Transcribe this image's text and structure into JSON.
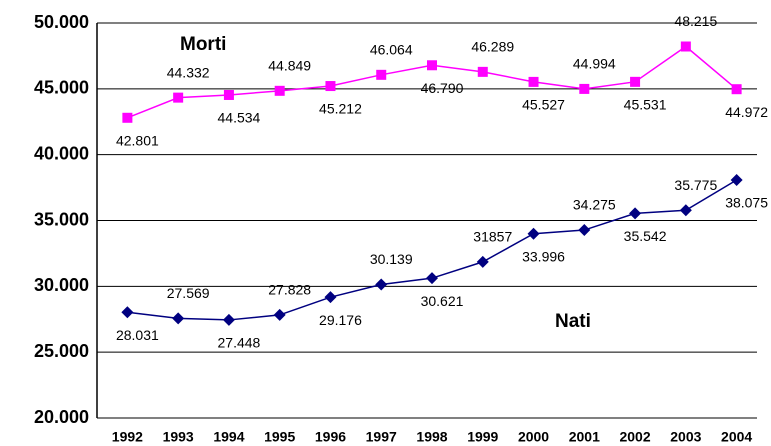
{
  "chart_data": {
    "type": "line",
    "categories": [
      "1992",
      "1993",
      "1994",
      "1995",
      "1996",
      "1997",
      "1998",
      "1999",
      "2000",
      "2001",
      "2002",
      "2003",
      "2004"
    ],
    "series": [
      {
        "name": "Morti",
        "color": "#ff00ff",
        "marker": "square",
        "values": [
          42801,
          44332,
          44534,
          44849,
          45212,
          46064,
          46790,
          46289,
          45527,
          44994,
          45531,
          48215,
          44972
        ],
        "value_labels": [
          "42.801",
          "44.332",
          "44.534",
          "44.849",
          "45.212",
          "46.064",
          "46.790",
          "46.289",
          "45.527",
          "44.994",
          "45.531",
          "48.215",
          "44.972"
        ]
      },
      {
        "name": "Nati",
        "color": "#000080",
        "marker": "diamond",
        "values": [
          28031,
          27569,
          27448,
          27828,
          29176,
          30139,
          30621,
          31857,
          33996,
          34275,
          35542,
          35775,
          38075
        ],
        "value_labels": [
          "28.031",
          "27.569",
          "27.448",
          "27.828",
          "29.176",
          "30.139",
          "30.621",
          "31857",
          "33.996",
          "34.275",
          "35.542",
          "35.775",
          "38.075"
        ]
      }
    ],
    "ylim": [
      20000,
      50000
    ],
    "yticks": [
      {
        "value": 20000,
        "label": "20.000"
      },
      {
        "value": 25000,
        "label": "25.000"
      },
      {
        "value": 30000,
        "label": "30.000"
      },
      {
        "value": 35000,
        "label": "35.000"
      },
      {
        "value": 40000,
        "label": "40.000"
      },
      {
        "value": 45000,
        "label": "45.000"
      },
      {
        "value": 50000,
        "label": "50.000"
      }
    ],
    "grid": true
  }
}
